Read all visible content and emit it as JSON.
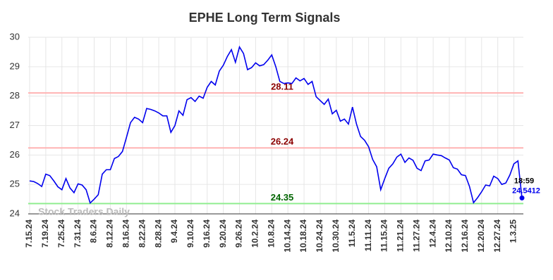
{
  "chart_data": {
    "type": "line",
    "title": "EPHE Long Term Signals",
    "categories": [
      "7.15.24",
      null,
      null,
      null,
      "7.19.24",
      null,
      null,
      null,
      "7.25.24",
      null,
      null,
      null,
      "7.31.24",
      null,
      null,
      null,
      "8.6.24",
      null,
      null,
      null,
      "8.12.24",
      null,
      null,
      null,
      "8.16.24",
      null,
      null,
      null,
      "8.22.24",
      null,
      null,
      null,
      "8.28.24",
      null,
      null,
      null,
      "9.4.24",
      null,
      null,
      null,
      "9.10.24",
      null,
      null,
      null,
      "9.16.24",
      null,
      null,
      null,
      "9.20.24",
      null,
      null,
      null,
      "9.26.24",
      null,
      null,
      null,
      "10.2.24",
      null,
      null,
      null,
      "10.8.24",
      null,
      null,
      null,
      "10.14.24",
      null,
      null,
      null,
      "10.18.24",
      null,
      null,
      null,
      "10.24.24",
      null,
      null,
      null,
      "10.30.24",
      null,
      null,
      null,
      "11.5.24",
      null,
      null,
      null,
      "11.11.24",
      null,
      null,
      null,
      "11.15.24",
      null,
      null,
      null,
      "11.21.24",
      null,
      null,
      null,
      "11.27.24",
      null,
      null,
      null,
      "12.4.24",
      null,
      null,
      null,
      "12.10.24",
      null,
      null,
      null,
      "12.16.24",
      null,
      null,
      null,
      "12.20.24",
      null,
      null,
      null,
      "12.27.24",
      null,
      null,
      null,
      "1.3.25",
      null,
      null
    ],
    "series": [
      {
        "color": "#0000ee",
        "values": [
          25.12,
          25.1,
          25.03,
          24.93,
          25.35,
          25.3,
          25.12,
          24.92,
          24.82,
          25.2,
          24.88,
          24.72,
          25.02,
          24.98,
          24.82,
          24.37,
          24.5,
          24.65,
          25.35,
          25.5,
          25.5,
          25.88,
          25.95,
          26.12,
          26.6,
          27.1,
          27.28,
          27.22,
          27.1,
          27.58,
          27.55,
          27.5,
          27.43,
          27.33,
          27.33,
          26.77,
          27.0,
          27.5,
          27.35,
          27.88,
          27.95,
          27.82,
          28.0,
          27.93,
          28.3,
          28.5,
          28.38,
          28.85,
          29.05,
          29.35,
          29.58,
          29.15,
          29.67,
          29.45,
          28.9,
          28.97,
          29.13,
          29.03,
          29.07,
          29.22,
          29.4,
          29.0,
          28.5,
          28.43,
          28.45,
          28.43,
          28.62,
          28.52,
          28.6,
          28.4,
          28.5,
          27.98,
          27.85,
          27.72,
          27.9,
          27.4,
          27.52,
          27.15,
          27.22,
          27.05,
          27.63,
          27.05,
          26.63,
          26.5,
          26.28,
          25.85,
          25.6,
          24.82,
          25.2,
          25.55,
          25.7,
          25.93,
          26.03,
          25.75,
          25.9,
          25.82,
          25.55,
          25.47,
          25.8,
          25.83,
          26.03,
          26.0,
          25.98,
          25.9,
          25.83,
          25.57,
          25.52,
          25.33,
          25.3,
          24.93,
          24.38,
          24.55,
          24.75,
          24.98,
          24.95,
          25.28,
          25.2,
          25.0,
          25.05,
          25.32,
          25.7,
          25.8,
          24.5412
        ]
      }
    ],
    "ylim": [
      24,
      30
    ],
    "yticks": [
      24,
      25,
      26,
      27,
      28,
      29,
      30
    ],
    "grid": true,
    "levels": [
      {
        "value": 28.11,
        "color": "#ffb3b3",
        "label_color": "#8b0000"
      },
      {
        "value": 26.24,
        "color": "#ffb3b3",
        "label_color": "#8b0000"
      },
      {
        "value": 24.35,
        "color": "#90ee90",
        "label_color": "#006400"
      }
    ],
    "last_time": "18:59",
    "watermark": "Stock Traders Daily"
  }
}
